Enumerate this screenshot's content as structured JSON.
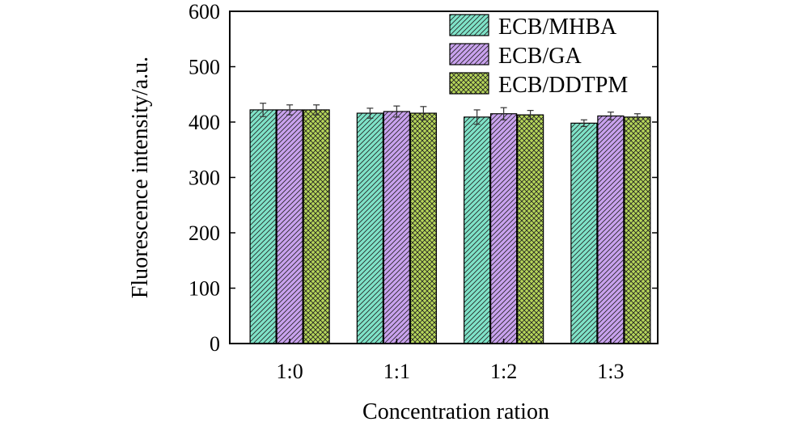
{
  "chart_data": {
    "type": "bar",
    "title": "",
    "xlabel": "Concentration ration",
    "ylabel": "Fluorescence intensity/a.u.",
    "categories": [
      "1:0",
      "1:1",
      "1:2",
      "1:3"
    ],
    "ylim": [
      0,
      600
    ],
    "yticks": [
      0,
      100,
      200,
      300,
      400,
      500,
      600
    ],
    "grid": false,
    "legend_position": "top-right",
    "series": [
      {
        "name": "ECB/MHBA",
        "values": [
          422,
          416,
          409,
          398
        ],
        "errors": [
          12,
          9,
          13,
          6
        ],
        "color": "#7fe3c8",
        "pattern": "diagonal-hatch"
      },
      {
        "name": "ECB/GA",
        "values": [
          422,
          419,
          415,
          411
        ],
        "errors": [
          9,
          10,
          11,
          7
        ],
        "color": "#c9a2ee",
        "pattern": "diagonal-hatch"
      },
      {
        "name": "ECB/DDTPM",
        "values": [
          422,
          416,
          413,
          409
        ],
        "errors": [
          9,
          12,
          8,
          6
        ],
        "color": "#b6d65a",
        "pattern": "cross-hatch"
      }
    ]
  }
}
